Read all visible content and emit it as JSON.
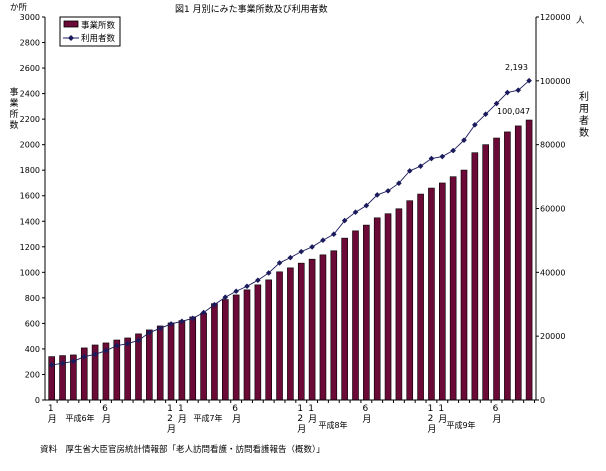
{
  "chart_data": {
    "type": "bar+line",
    "title": "図1 月別にみた事業所数及び利用者数",
    "left_unit": "か所",
    "right_unit": "人",
    "ylabel_left": "事業所数",
    "ylabel_right": "利用者数",
    "ylim_left": [
      0,
      3000
    ],
    "ylim_right": [
      0,
      120000
    ],
    "left_ticks": [
      "0",
      "200",
      "400",
      "600",
      "800",
      "1000",
      "1200",
      "1400",
      "1600",
      "1800",
      "2000",
      "2200",
      "2400",
      "2600",
      "2800",
      "3000"
    ],
    "right_ticks": [
      "0",
      "20000",
      "40000",
      "60000",
      "80000",
      "100000",
      "120000"
    ],
    "legend": {
      "position": "top-left",
      "entries": [
        "事業所数",
        "利用者数"
      ]
    },
    "categories_note": "平成6年1月〜平成9年9月 (monthly)",
    "x_month_labels": [
      {
        "i": 0,
        "text": "1月"
      },
      {
        "i": 5,
        "text": "6月"
      },
      {
        "i": 11,
        "text": "12月"
      },
      {
        "i": 12,
        "text": "1月"
      },
      {
        "i": 17,
        "text": "6月"
      },
      {
        "i": 23,
        "text": "12月"
      },
      {
        "i": 24,
        "text": "1月"
      },
      {
        "i": 29,
        "text": "6月"
      },
      {
        "i": 35,
        "text": "12月"
      },
      {
        "i": 36,
        "text": "1月"
      },
      {
        "i": 41,
        "text": "6月"
      }
    ],
    "x_year_labels": [
      {
        "i": 2.5,
        "row": 0,
        "text": "平成6年"
      },
      {
        "i": 14.2,
        "row": 0,
        "text": "平成7年"
      },
      {
        "i": 25.8,
        "row": 1,
        "text": "平成8年"
      },
      {
        "i": 37.5,
        "row": 1,
        "text": "平成9年"
      }
    ],
    "series": [
      {
        "name": "事業所数",
        "type": "bar",
        "axis": "left",
        "color": "#6b0a36",
        "values": [
          340,
          348,
          353,
          408,
          431,
          447,
          470,
          486,
          518,
          549,
          580,
          604,
          622,
          651,
          680,
          755,
          787,
          823,
          863,
          902,
          941,
          1004,
          1035,
          1072,
          1103,
          1137,
          1169,
          1268,
          1325,
          1370,
          1427,
          1459,
          1498,
          1561,
          1613,
          1660,
          1700,
          1749,
          1801,
          1937,
          2000,
          2052,
          2100,
          2147,
          2193
        ]
      },
      {
        "name": "利用者数",
        "type": "line",
        "axis": "right",
        "color": "#1a1a5c",
        "values": [
          10970,
          11500,
          12130,
          13580,
          14320,
          15460,
          17030,
          17660,
          18700,
          21100,
          22470,
          23820,
          24660,
          25600,
          27380,
          29880,
          32200,
          34070,
          35640,
          37520,
          39810,
          42950,
          44610,
          46490,
          47960,
          50060,
          51940,
          56210,
          58840,
          60910,
          64260,
          65520,
          67930,
          71790,
          73260,
          75650,
          76280,
          78150,
          81410,
          86210,
          89560,
          92890,
          96330,
          97080,
          100047
        ]
      }
    ],
    "annotations": [
      "2,193",
      "100,047"
    ],
    "source": "資料　厚生省大臣官房統計情報部「老人訪問看護・訪問看護報告（概数）」"
  }
}
